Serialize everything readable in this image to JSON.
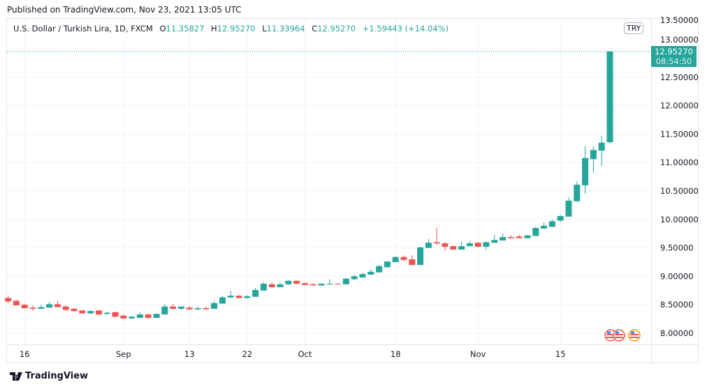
{
  "published": "Published on TradingView.com, Nov 23, 2021 13:05 UTC",
  "legend": {
    "symbol": "U.S. Dollar / Turkish Lira, 1D, FXCM",
    "o_label": "O",
    "o": "11.35827",
    "h_label": "H",
    "h": "12.95270",
    "l_label": "L",
    "l": "11.33964",
    "c_label": "C",
    "c": "12.95270",
    "change": "+1.59443 (+14.04%)"
  },
  "price_axis": {
    "currency": "TRY",
    "last_price": "12.95270",
    "countdown": "08:54:50"
  },
  "footer": {
    "brand": "TradingView"
  },
  "colors": {
    "up": "#26a69a",
    "down": "#ef5350",
    "grid": "#f0f3fa",
    "last_line": "#26a69a"
  },
  "chart_data": {
    "type": "candlestick",
    "title": "U.S. Dollar / Turkish Lira, 1D, FXCM",
    "ylim": [
      7.85,
      13.55
    ],
    "grid": true,
    "y_ticks": [
      "8.00000",
      "8.50000",
      "9.00000",
      "9.50000",
      "10.00000",
      "10.50000",
      "11.00000",
      "11.50000",
      "12.00000",
      "12.50000",
      "13.00000",
      "13.50000"
    ],
    "x_ticks": [
      {
        "label": "16",
        "date": "2021-08-16"
      },
      {
        "label": "Sep",
        "date": "2021-09-01"
      },
      {
        "label": "13",
        "date": "2021-09-13"
      },
      {
        "label": "22",
        "date": "2021-09-22"
      },
      {
        "label": "Oct",
        "date": "2021-10-01"
      },
      {
        "label": "18",
        "date": "2021-10-18"
      },
      {
        "label": "Nov",
        "date": "2021-11-01"
      },
      {
        "label": "15",
        "date": "2021-11-15"
      }
    ],
    "candles": [
      [
        "2021-08-12",
        8.62,
        8.65,
        8.53,
        8.56
      ],
      [
        "2021-08-13",
        8.57,
        8.59,
        8.49,
        8.49
      ],
      [
        "2021-08-16",
        8.5,
        8.52,
        8.44,
        8.44
      ],
      [
        "2021-08-17",
        8.45,
        8.49,
        8.39,
        8.43
      ],
      [
        "2021-08-18",
        8.43,
        8.5,
        8.43,
        8.46
      ],
      [
        "2021-08-19",
        8.45,
        8.55,
        8.45,
        8.51
      ],
      [
        "2021-08-20",
        8.51,
        8.57,
        8.45,
        8.46
      ],
      [
        "2021-08-23",
        8.47,
        8.49,
        8.39,
        8.41
      ],
      [
        "2021-08-24",
        8.43,
        8.44,
        8.38,
        8.39
      ],
      [
        "2021-08-25",
        8.4,
        8.41,
        8.34,
        8.35
      ],
      [
        "2021-08-26",
        8.35,
        8.4,
        8.34,
        8.39
      ],
      [
        "2021-08-27",
        8.4,
        8.41,
        8.32,
        8.33
      ],
      [
        "2021-08-30",
        8.34,
        8.38,
        8.32,
        8.36
      ],
      [
        "2021-08-31",
        8.37,
        8.38,
        8.28,
        8.29
      ],
      [
        "2021-09-01",
        8.31,
        8.33,
        8.25,
        8.26
      ],
      [
        "2021-09-02",
        8.26,
        8.31,
        8.25,
        8.29
      ],
      [
        "2021-09-03",
        8.27,
        8.37,
        8.27,
        8.33
      ],
      [
        "2021-09-06",
        8.33,
        8.34,
        8.25,
        8.27
      ],
      [
        "2021-09-07",
        8.27,
        8.35,
        8.27,
        8.34
      ],
      [
        "2021-09-08",
        8.33,
        8.51,
        8.33,
        8.47
      ],
      [
        "2021-09-09",
        8.47,
        8.52,
        8.42,
        8.43
      ],
      [
        "2021-09-10",
        8.43,
        8.47,
        8.41,
        8.47
      ],
      [
        "2021-09-13",
        8.45,
        8.48,
        8.41,
        8.42
      ],
      [
        "2021-09-14",
        8.42,
        8.47,
        8.41,
        8.44
      ],
      [
        "2021-09-15",
        8.44,
        8.47,
        8.41,
        8.42
      ],
      [
        "2021-09-16",
        8.43,
        8.57,
        8.43,
        8.53
      ],
      [
        "2021-09-17",
        8.52,
        8.66,
        8.52,
        8.63
      ],
      [
        "2021-09-20",
        8.63,
        8.74,
        8.62,
        8.66
      ],
      [
        "2021-09-21",
        8.66,
        8.67,
        8.61,
        8.62
      ],
      [
        "2021-09-22",
        8.62,
        8.67,
        8.61,
        8.65
      ],
      [
        "2021-09-23",
        8.64,
        8.8,
        8.64,
        8.76
      ],
      [
        "2021-09-24",
        8.75,
        8.9,
        8.75,
        8.87
      ],
      [
        "2021-09-27",
        8.86,
        8.89,
        8.8,
        8.81
      ],
      [
        "2021-09-28",
        8.81,
        8.89,
        8.81,
        8.86
      ],
      [
        "2021-09-29",
        8.86,
        8.94,
        8.85,
        8.92
      ],
      [
        "2021-09-30",
        8.92,
        8.93,
        8.86,
        8.87
      ],
      [
        "2021-10-01",
        8.88,
        8.89,
        8.84,
        8.85
      ],
      [
        "2021-10-04",
        8.86,
        8.88,
        8.84,
        8.84
      ],
      [
        "2021-10-05",
        8.84,
        8.88,
        8.84,
        8.87
      ],
      [
        "2021-10-06",
        8.86,
        8.95,
        8.86,
        8.87
      ],
      [
        "2021-10-07",
        8.87,
        8.88,
        8.86,
        8.86
      ],
      [
        "2021-10-08",
        8.86,
        8.97,
        8.86,
        8.96
      ],
      [
        "2021-10-11",
        8.95,
        9.03,
        8.93,
        9.0
      ],
      [
        "2021-10-12",
        8.98,
        9.06,
        8.98,
        9.04
      ],
      [
        "2021-10-13",
        9.03,
        9.12,
        9.03,
        9.08
      ],
      [
        "2021-10-14",
        9.07,
        9.2,
        9.07,
        9.18
      ],
      [
        "2021-10-15",
        9.16,
        9.27,
        9.16,
        9.26
      ],
      [
        "2021-10-18",
        9.25,
        9.35,
        9.25,
        9.34
      ],
      [
        "2021-10-19",
        9.34,
        9.37,
        9.27,
        9.29
      ],
      [
        "2021-10-20",
        9.3,
        9.37,
        9.2,
        9.2
      ],
      [
        "2021-10-21",
        9.2,
        9.52,
        9.2,
        9.51
      ],
      [
        "2021-10-22",
        9.5,
        9.66,
        9.5,
        9.59
      ],
      [
        "2021-10-25",
        9.6,
        9.85,
        9.56,
        9.58
      ],
      [
        "2021-10-26",
        9.58,
        9.6,
        9.45,
        9.52
      ],
      [
        "2021-10-27",
        9.53,
        9.54,
        9.47,
        9.47
      ],
      [
        "2021-10-28",
        9.47,
        9.62,
        9.47,
        9.53
      ],
      [
        "2021-10-29",
        9.53,
        9.62,
        9.53,
        9.58
      ],
      [
        "2021-11-01",
        9.59,
        9.6,
        9.51,
        9.52
      ],
      [
        "2021-11-02",
        9.52,
        9.61,
        9.47,
        9.6
      ],
      [
        "2021-11-03",
        9.59,
        9.73,
        9.59,
        9.64
      ],
      [
        "2021-11-04",
        9.63,
        9.75,
        9.63,
        9.69
      ],
      [
        "2021-11-05",
        9.69,
        9.72,
        9.67,
        9.67
      ],
      [
        "2021-11-08",
        9.7,
        9.73,
        9.67,
        9.67
      ],
      [
        "2021-11-09",
        9.67,
        9.73,
        9.67,
        9.72
      ],
      [
        "2021-11-10",
        9.71,
        9.87,
        9.71,
        9.85
      ],
      [
        "2021-11-11",
        9.84,
        9.95,
        9.84,
        9.89
      ],
      [
        "2021-11-12",
        9.87,
        10.0,
        9.87,
        9.97
      ],
      [
        "2021-11-15",
        9.98,
        10.08,
        9.96,
        10.06
      ],
      [
        "2021-11-16",
        10.05,
        10.39,
        10.05,
        10.33
      ],
      [
        "2021-11-17",
        10.32,
        10.67,
        10.31,
        10.61
      ],
      [
        "2021-11-18",
        10.6,
        11.29,
        10.45,
        11.08
      ],
      [
        "2021-11-19",
        11.06,
        11.29,
        10.82,
        11.22
      ],
      [
        "2021-11-22",
        11.21,
        11.47,
        10.94,
        11.35
      ],
      [
        "2021-11-23",
        11.35827,
        12.9527,
        11.33964,
        12.9527
      ]
    ]
  }
}
